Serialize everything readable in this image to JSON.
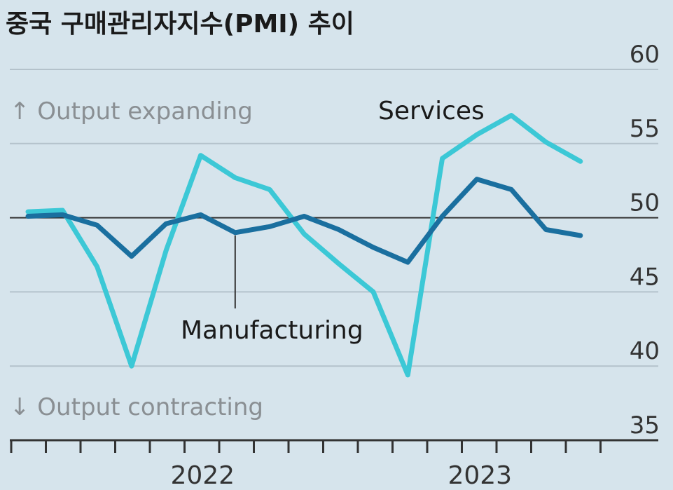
{
  "chart_data": {
    "type": "line",
    "title": "중국 구매관리자지수(PMI) 추이",
    "ylim": [
      35,
      60
    ],
    "yticks": [
      35,
      40,
      45,
      50,
      55,
      60
    ],
    "reference_line": 50,
    "grid": true,
    "annotations": {
      "expanding": "↑ Output expanding",
      "contracting": "↓ Output contracting"
    },
    "months": 18,
    "x_tick_count": 17,
    "x_labels": [
      {
        "label": "2022",
        "month_index": 5.5
      },
      {
        "label": "2023",
        "month_index": 13.5
      }
    ],
    "series": [
      {
        "name": "Services",
        "color": "#3cc8d6",
        "values": [
          50.4,
          50.5,
          46.7,
          40.0,
          47.8,
          54.2,
          52.7,
          51.9,
          48.9,
          46.9,
          45.0,
          39.4,
          54.0,
          55.6,
          56.9,
          55.1,
          53.8
        ]
      },
      {
        "name": "Manufacturing",
        "color": "#1a6f9f",
        "values": [
          50.1,
          50.2,
          49.5,
          47.4,
          49.6,
          50.2,
          49.0,
          49.4,
          50.1,
          49.2,
          48.0,
          47.0,
          50.1,
          52.6,
          51.9,
          49.2,
          48.8
        ]
      }
    ]
  }
}
